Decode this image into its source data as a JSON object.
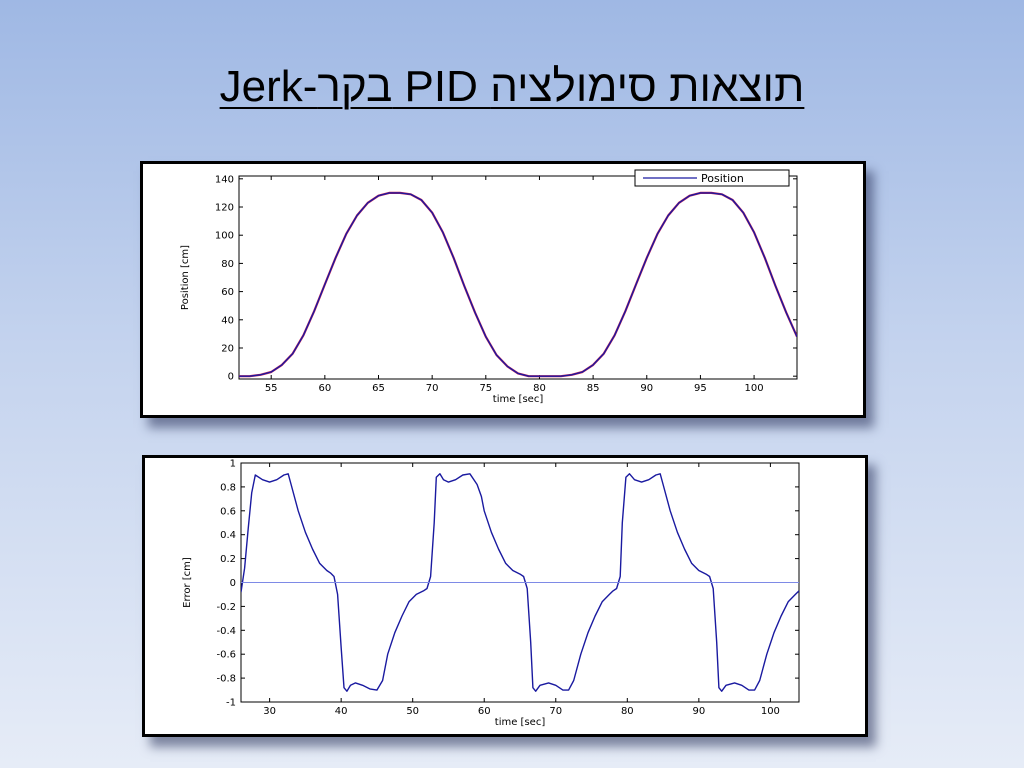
{
  "slide": {
    "title": "Jerk-בקר PID תוצאות סימולציה"
  },
  "colors": {
    "line_blue": "#1a1aa0",
    "line_red": "#d02050",
    "zero_line": "#7e8ae6"
  },
  "chart_data": [
    {
      "type": "line",
      "title": "",
      "xlabel": "time [sec]",
      "ylabel": "Position [cm]",
      "xlim": [
        52,
        104
      ],
      "ylim": [
        -2,
        142
      ],
      "xticks": [
        55,
        60,
        65,
        70,
        75,
        80,
        85,
        90,
        95,
        100
      ],
      "yticks": [
        0,
        20,
        40,
        60,
        80,
        100,
        120,
        140
      ],
      "legend": {
        "position": "top-right",
        "entries": [
          "Position"
        ]
      },
      "grid": false,
      "series": [
        {
          "name": "Position",
          "color": "#1a1aa0",
          "x": [
            52,
            53,
            54,
            55,
            56,
            57,
            58,
            59,
            60,
            61,
            62,
            63,
            64,
            65,
            66,
            67,
            68,
            69,
            70,
            71,
            72,
            73,
            74,
            75,
            76,
            77,
            78,
            79,
            80,
            81,
            82,
            83,
            84,
            85,
            86,
            87,
            88,
            89,
            90,
            91,
            92,
            93,
            94,
            95,
            96,
            97,
            98,
            99,
            100,
            101,
            102,
            103,
            104
          ],
          "y": [
            0,
            0,
            1,
            3,
            8,
            16,
            29,
            46,
            65,
            84,
            101,
            114,
            123,
            128,
            130,
            130,
            129,
            125,
            116,
            102,
            84,
            64,
            45,
            28,
            15,
            7,
            2,
            0,
            0,
            0,
            0,
            1,
            3,
            8,
            16,
            29,
            46,
            65,
            84,
            101,
            114,
            123,
            128,
            130,
            130,
            129,
            125,
            116,
            102,
            84,
            64,
            45,
            28
          ]
        }
      ]
    },
    {
      "type": "line",
      "title": "",
      "xlabel": "time [sec]",
      "ylabel": "Error [cm]",
      "xlim": [
        26,
        104
      ],
      "ylim": [
        -1,
        1
      ],
      "xticks": [
        30,
        40,
        50,
        60,
        70,
        80,
        90,
        100
      ],
      "yticks": [
        1,
        0.8,
        0.6,
        0.4,
        0.2,
        0,
        -0.2,
        -0.4,
        -0.6,
        -0.8,
        -1
      ],
      "grid": false,
      "series": [
        {
          "color": "#1a1aa0",
          "x": [
            26,
            26.5,
            27,
            27.5,
            28,
            29,
            30,
            31,
            32,
            32.6,
            33,
            34,
            35,
            36,
            37,
            38,
            38.5,
            39,
            39.5,
            40,
            40.4,
            40.8,
            41.3,
            42,
            43,
            44,
            45,
            45.8,
            46.5,
            47.5,
            48.5,
            49.5,
            50.5,
            51.5,
            52,
            52.5,
            53,
            53.3,
            53.8,
            54.3,
            55,
            56,
            57,
            58,
            59,
            59.6,
            60,
            61,
            62,
            63,
            64,
            65,
            65.5,
            66,
            66.5,
            66.8,
            67.2,
            67.8,
            69,
            70,
            71,
            71.8,
            72.5,
            73.5,
            74.5,
            75.5,
            76.5,
            77.5,
            78,
            78.5,
            79,
            79.3,
            79.8,
            80.3,
            81,
            82,
            83,
            84,
            84.6,
            85,
            86,
            87,
            88,
            89,
            90,
            91,
            91.5,
            92,
            92.5,
            92.8,
            93.2,
            93.8,
            95,
            96,
            97,
            97.8,
            98.5,
            99.5,
            100.5,
            101.5,
            102.5,
            103.5,
            104
          ],
          "y": [
            -0.08,
            0.12,
            0.45,
            0.75,
            0.9,
            0.86,
            0.84,
            0.86,
            0.9,
            0.91,
            0.82,
            0.6,
            0.42,
            0.28,
            0.16,
            0.1,
            0.08,
            0.05,
            -0.1,
            -0.55,
            -0.88,
            -0.91,
            -0.86,
            -0.84,
            -0.86,
            -0.89,
            -0.9,
            -0.82,
            -0.6,
            -0.42,
            -0.28,
            -0.16,
            -0.1,
            -0.07,
            -0.05,
            0.05,
            0.5,
            0.88,
            0.91,
            0.86,
            0.84,
            0.86,
            0.9,
            0.91,
            0.82,
            0.72,
            0.6,
            0.42,
            0.28,
            0.16,
            0.1,
            0.07,
            0.05,
            -0.05,
            -0.5,
            -0.88,
            -0.91,
            -0.86,
            -0.84,
            -0.86,
            -0.9,
            -0.9,
            -0.82,
            -0.6,
            -0.42,
            -0.28,
            -0.16,
            -0.1,
            -0.07,
            -0.05,
            0.05,
            0.5,
            0.88,
            0.91,
            0.86,
            0.84,
            0.86,
            0.9,
            0.91,
            0.82,
            0.6,
            0.42,
            0.28,
            0.16,
            0.1,
            0.07,
            0.05,
            -0.05,
            -0.5,
            -0.88,
            -0.91,
            -0.86,
            -0.84,
            -0.86,
            -0.9,
            -0.9,
            -0.82,
            -0.6,
            -0.42,
            -0.28,
            -0.16,
            -0.1,
            -0.07
          ]
        },
        {
          "color": "#7e8ae6",
          "x": [
            26,
            104
          ],
          "y": [
            0,
            0
          ]
        }
      ]
    }
  ]
}
